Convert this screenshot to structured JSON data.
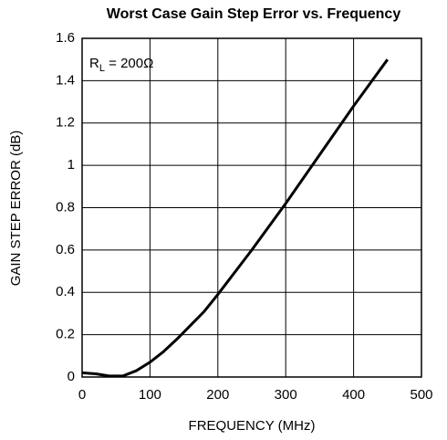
{
  "chart_data": {
    "type": "line",
    "title": "Worst Case Gain Step Error vs. Frequency",
    "x_label": "FREQUENCY (MHz)",
    "y_label": "GAIN STEP ERROR (dB)",
    "annotation": {
      "text": "R",
      "sub": "L",
      "rest": " = 200Ω"
    },
    "x": [
      0,
      20,
      40,
      60,
      80,
      100,
      120,
      140,
      160,
      180,
      200,
      250,
      300,
      350,
      400,
      450
    ],
    "series": [
      {
        "name": "RL = 200Ω",
        "color": "#000000",
        "values": [
          0.02,
          0.015,
          0.005,
          0.005,
          0.03,
          0.07,
          0.12,
          0.18,
          0.245,
          0.31,
          0.39,
          0.6,
          0.82,
          1.05,
          1.28,
          1.5
        ]
      }
    ],
    "xlim": [
      0,
      500
    ],
    "xticks": [
      0,
      100,
      200,
      300,
      400,
      500
    ],
    "ylim": [
      0,
      1.6
    ],
    "yticks": [
      0,
      0.2,
      0.4,
      0.6,
      0.8,
      1,
      1.2,
      1.4,
      1.6
    ],
    "grid": true
  }
}
